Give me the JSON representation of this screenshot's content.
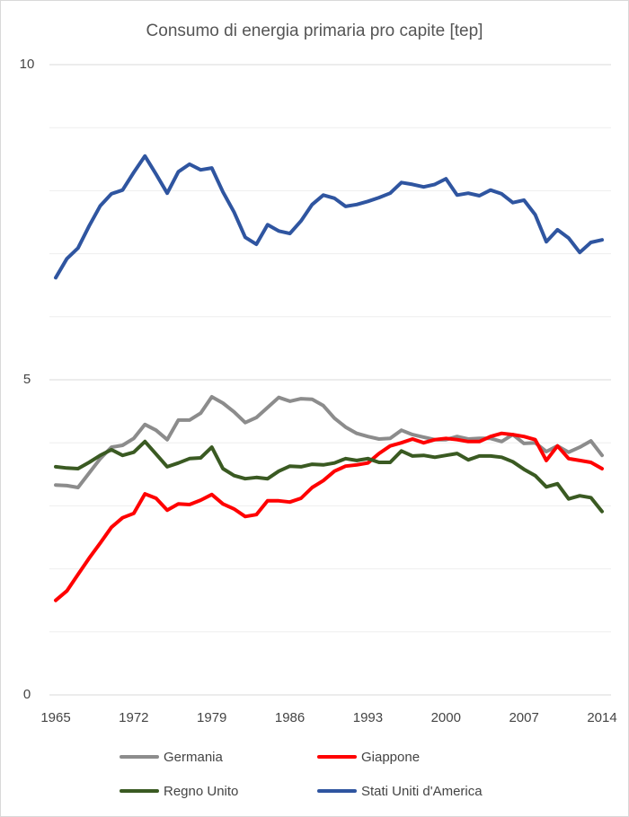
{
  "chart_data": {
    "type": "line",
    "title": "Consumo di energia primaria pro capite [tep]",
    "x": [
      1965,
      1966,
      1967,
      1968,
      1969,
      1970,
      1971,
      1972,
      1973,
      1974,
      1975,
      1976,
      1977,
      1978,
      1979,
      1980,
      1981,
      1982,
      1983,
      1984,
      1985,
      1986,
      1987,
      1988,
      1989,
      1990,
      1991,
      1992,
      1993,
      1994,
      1995,
      1996,
      1997,
      1998,
      1999,
      2000,
      2001,
      2002,
      2003,
      2004,
      2005,
      2006,
      2007,
      2008,
      2009,
      2010,
      2011,
      2012,
      2013,
      2014
    ],
    "xlim": [
      1965,
      2014
    ],
    "xticks": [
      1965,
      1972,
      1979,
      1986,
      1993,
      2000,
      2007,
      2014
    ],
    "ylim": [
      0,
      10
    ],
    "yticks": [
      0,
      5,
      10
    ],
    "minor_yticks": [
      1,
      2,
      3,
      4,
      6,
      7,
      8,
      9
    ],
    "grid": true,
    "legend": "bottom",
    "series": [
      {
        "name": "Germania",
        "color": "#8c8c8c",
        "values": [
          3.33,
          3.32,
          3.29,
          3.52,
          3.75,
          3.93,
          3.96,
          4.07,
          4.29,
          4.2,
          4.05,
          4.36,
          4.36,
          4.47,
          4.73,
          4.63,
          4.49,
          4.32,
          4.4,
          4.56,
          4.72,
          4.66,
          4.7,
          4.69,
          4.59,
          4.39,
          4.25,
          4.15,
          4.1,
          4.06,
          4.07,
          4.2,
          4.13,
          4.09,
          4.05,
          4.05,
          4.1,
          4.06,
          4.07,
          4.07,
          4.02,
          4.13,
          3.99,
          4.0,
          3.86,
          3.95,
          3.85,
          3.93,
          4.03,
          3.8
        ]
      },
      {
        "name": "Giappone",
        "color": "#ff0000",
        "values": [
          1.5,
          1.65,
          1.91,
          2.17,
          2.41,
          2.66,
          2.81,
          2.88,
          3.19,
          3.12,
          2.93,
          3.03,
          3.02,
          3.09,
          3.18,
          3.03,
          2.95,
          2.83,
          2.86,
          3.08,
          3.08,
          3.06,
          3.12,
          3.29,
          3.4,
          3.55,
          3.63,
          3.65,
          3.68,
          3.83,
          3.95,
          4.0,
          4.06,
          4.0,
          4.05,
          4.07,
          4.05,
          4.02,
          4.02,
          4.1,
          4.15,
          4.13,
          4.1,
          4.05,
          3.72,
          3.95,
          3.75,
          3.72,
          3.69,
          3.59
        ]
      },
      {
        "name": "Regno Unito",
        "color": "#3a5a22",
        "values": [
          3.62,
          3.6,
          3.59,
          3.69,
          3.8,
          3.89,
          3.8,
          3.85,
          4.02,
          3.82,
          3.62,
          3.68,
          3.75,
          3.76,
          3.93,
          3.59,
          3.48,
          3.43,
          3.45,
          3.43,
          3.55,
          3.63,
          3.62,
          3.66,
          3.65,
          3.68,
          3.75,
          3.72,
          3.75,
          3.69,
          3.69,
          3.87,
          3.79,
          3.8,
          3.77,
          3.8,
          3.83,
          3.73,
          3.79,
          3.79,
          3.77,
          3.7,
          3.58,
          3.48,
          3.3,
          3.35,
          3.11,
          3.16,
          3.13,
          2.91
        ]
      },
      {
        "name": "Stati Uniti d'America",
        "color": "#2f55a0",
        "values": [
          6.62,
          6.92,
          7.09,
          7.44,
          7.76,
          7.95,
          8.01,
          8.29,
          8.55,
          8.26,
          7.96,
          8.3,
          8.42,
          8.33,
          8.36,
          7.98,
          7.66,
          7.26,
          7.15,
          7.46,
          7.36,
          7.32,
          7.52,
          7.78,
          7.93,
          7.88,
          7.75,
          7.78,
          7.83,
          7.89,
          7.96,
          8.13,
          8.1,
          8.06,
          8.1,
          8.19,
          7.93,
          7.96,
          7.92,
          8.01,
          7.95,
          7.81,
          7.85,
          7.62,
          7.19,
          7.38,
          7.25,
          7.02,
          7.18,
          7.22
        ]
      }
    ]
  }
}
